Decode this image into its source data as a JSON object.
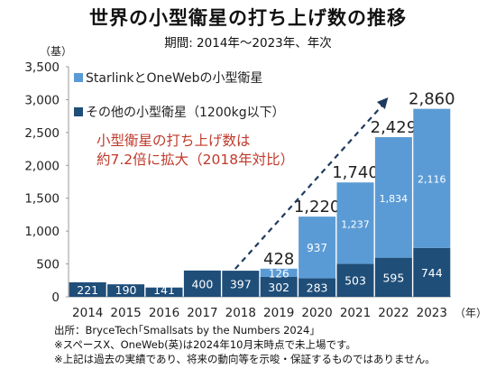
{
  "header": {
    "title": "世界の小型衛星の打ち上げ数の推移",
    "subtitle": "期間: 2014年〜2023年、年次"
  },
  "chart_data": {
    "type": "bar",
    "stacked": true,
    "categories": [
      "2014",
      "2015",
      "2016",
      "2017",
      "2018",
      "2019",
      "2020",
      "2021",
      "2022",
      "2023"
    ],
    "series": [
      {
        "name": "その他の小型衛星（1200kg以下）",
        "values": [
          221,
          190,
          141,
          400,
          397,
          302,
          283,
          503,
          595,
          744
        ],
        "color": "#1f4e79"
      },
      {
        "name": "StarlinkとOneWebの小型衛星",
        "values": [
          0,
          0,
          0,
          0,
          0,
          126,
          937,
          1237,
          1834,
          2116
        ],
        "color": "#5b9bd5"
      }
    ],
    "totals": [
      null,
      null,
      null,
      null,
      null,
      428,
      1220,
      1740,
      2429,
      2860
    ],
    "ylabel": "（基）",
    "xlabel": "（年）",
    "ylim": [
      0,
      3500
    ],
    "yticks": [
      0,
      500,
      1000,
      1500,
      2000,
      2500,
      3000,
      3500
    ],
    "ytick_labels": [
      "0",
      "500",
      "1,000",
      "1,500",
      "2,000",
      "2,500",
      "3,000",
      "3,500"
    ],
    "total_labels": [
      "",
      "",
      "",
      "",
      "",
      "428",
      "1,220",
      "1,740",
      "2,429",
      "2,860"
    ],
    "legend_placement": "top-left",
    "annotation": {
      "lines": [
        "小型衛星の打ち上げ数は",
        "約7.2倍に拡大（2018年対比）"
      ],
      "color": "#c0392b"
    },
    "trend_arrow": {
      "from_category": "2018",
      "to_category": "2022"
    }
  },
  "footer": {
    "source": "出所：BryceTech｢Smallsats by the Numbers 2024｣",
    "note1": "※スペースX、OneWeb(英)は2024年10月末時点で未上場です。",
    "note2": "※上記は過去の実績であり、将来の動向等を示唆・保証するものではありません。"
  }
}
